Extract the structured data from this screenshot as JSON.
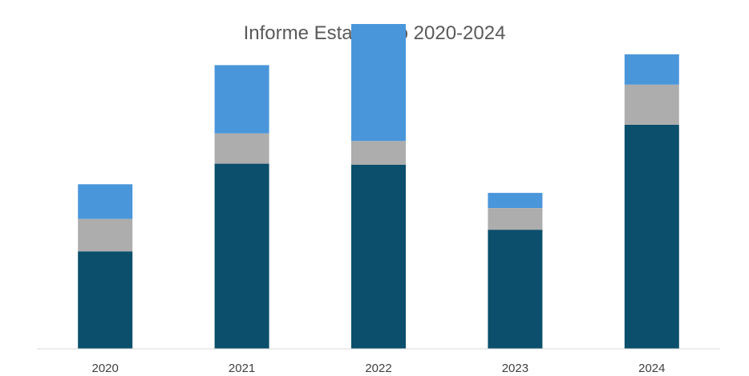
{
  "chart_data": {
    "type": "bar",
    "stacked": true,
    "title": "Informe Estadístico 2020-2024",
    "xlabel": "",
    "ylabel": "",
    "categories": [
      "2020",
      "2021",
      "2022",
      "2023",
      "2024"
    ],
    "series": [
      {
        "values": [
          90,
          171,
          170,
          110,
          207
        ],
        "color": "#0B4F6C"
      },
      {
        "values": [
          30,
          28,
          22,
          20,
          37
        ],
        "color": "#ADADAD"
      },
      {
        "values": [
          32,
          63,
          108,
          14,
          28
        ],
        "color": "#4A96DB"
      }
    ],
    "ylim": [
      0,
      300
    ],
    "grid": false,
    "legend": "none"
  }
}
